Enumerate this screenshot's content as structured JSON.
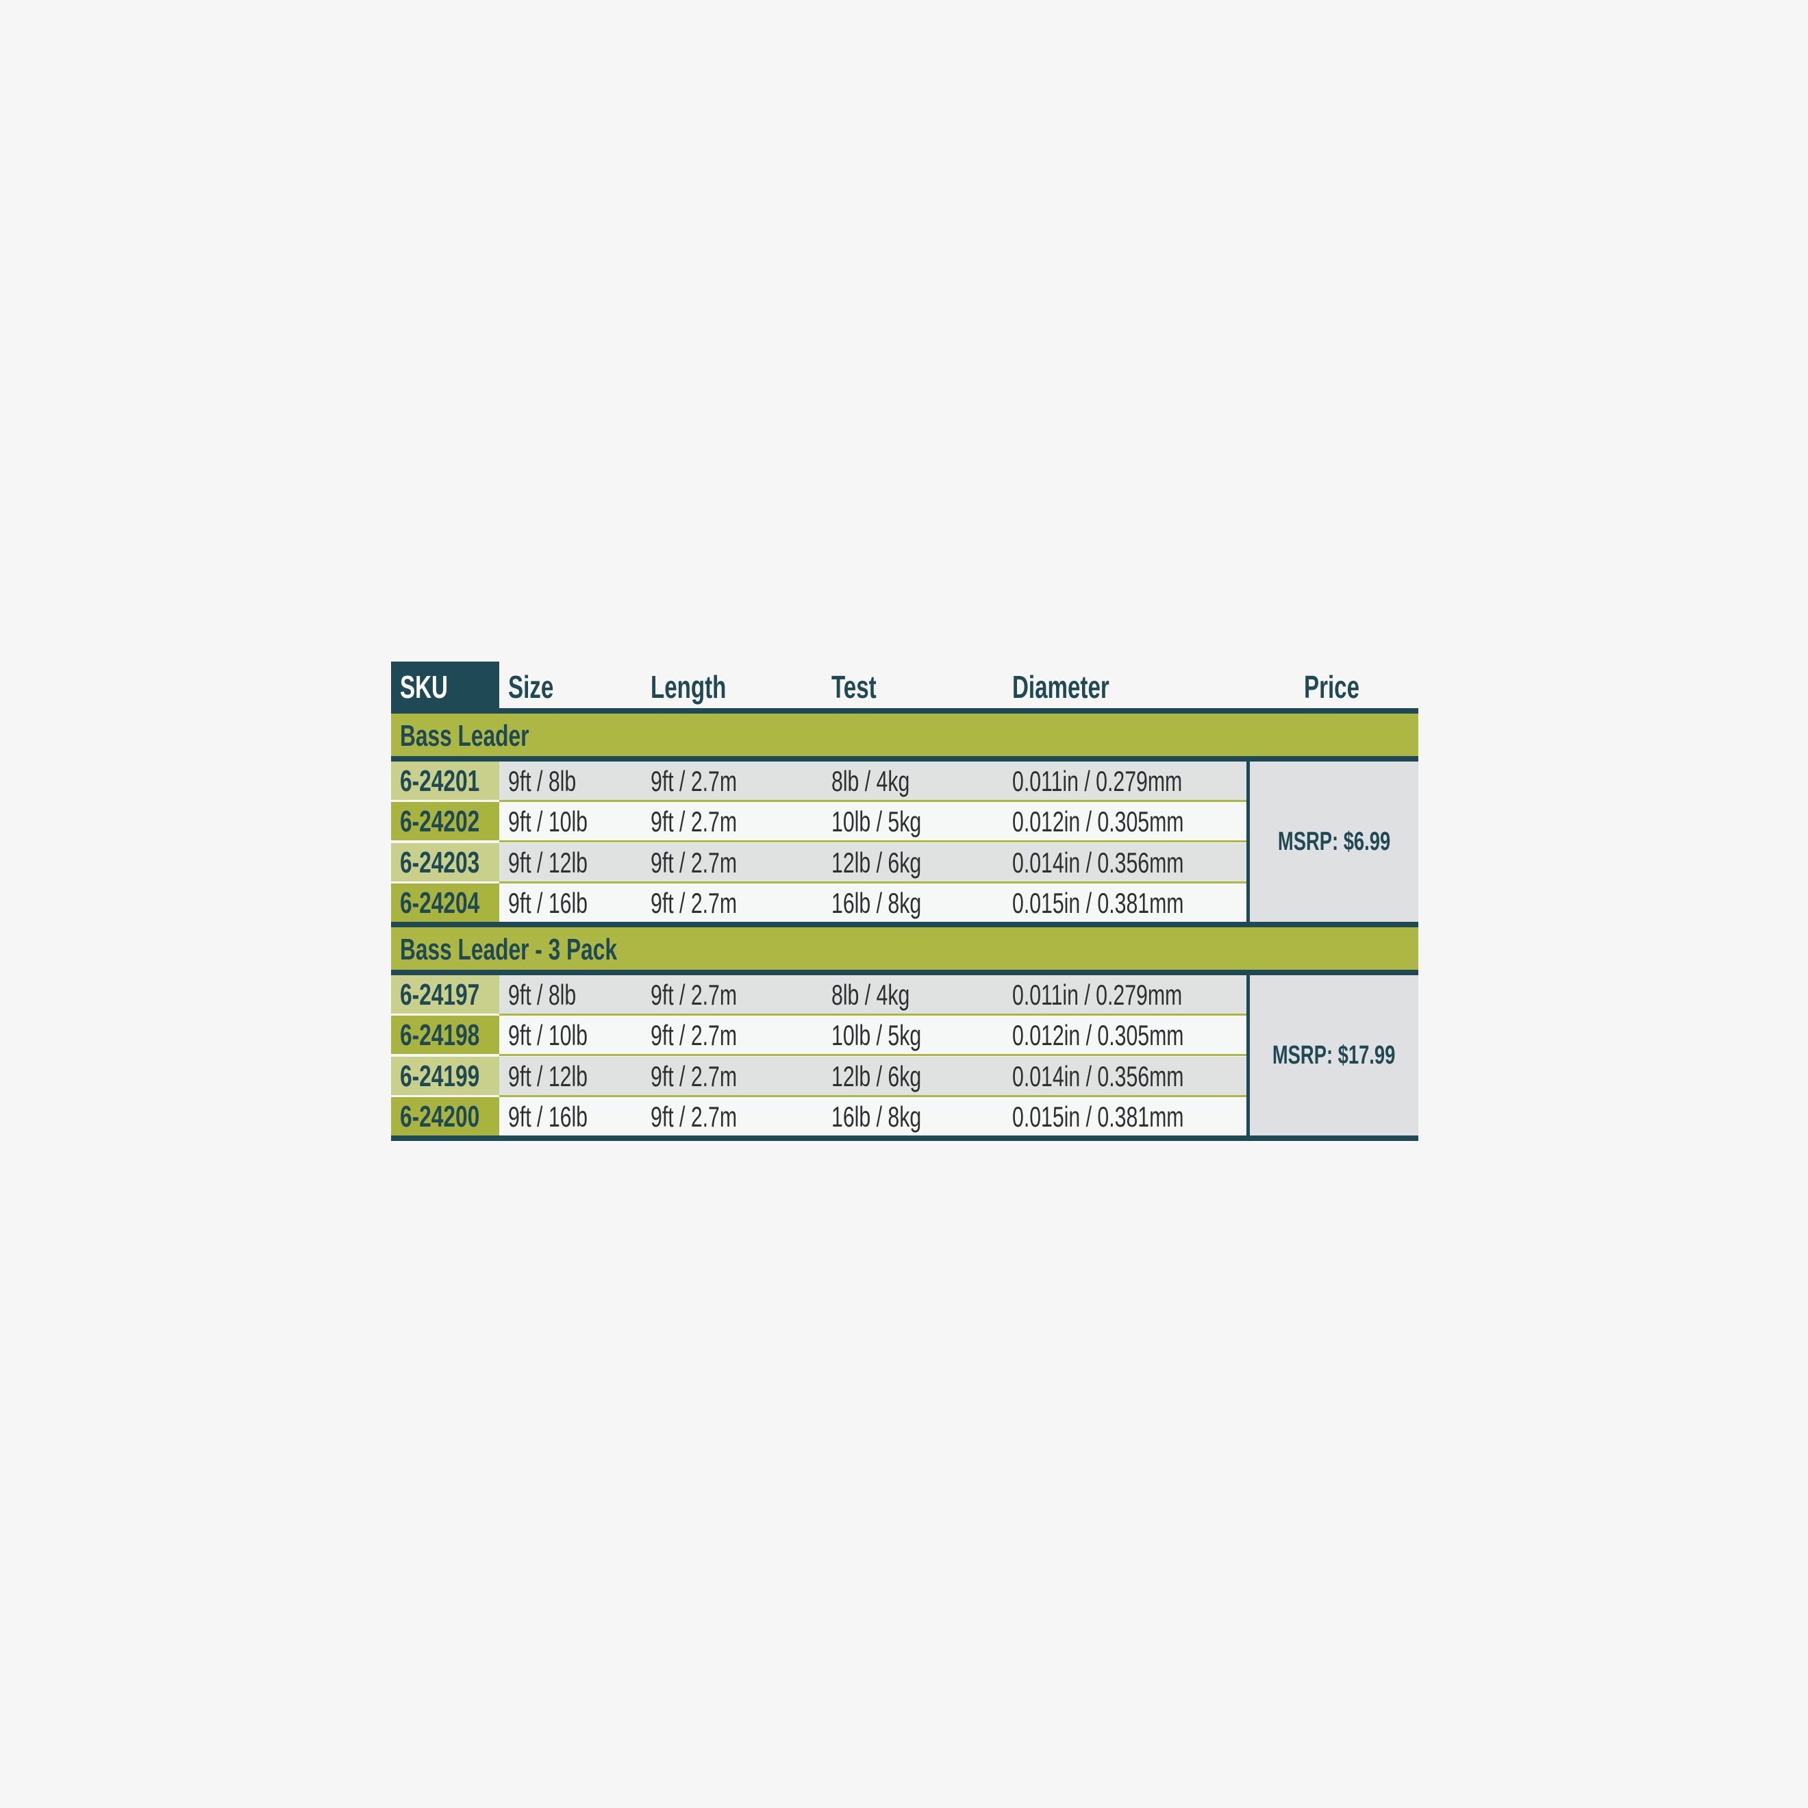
{
  "headers": {
    "sku": "SKU",
    "size": "Size",
    "length": "Length",
    "test": "Test",
    "diameter": "Diameter",
    "price": "Price"
  },
  "colors": {
    "dark_teal": "#1f4a55",
    "green": "#adb844",
    "sku_light": "#c9d08c",
    "sku_dark": "#a9b43f",
    "row_gray": "#e0e1e1",
    "row_white": "#f6f7f7"
  },
  "sections": [
    {
      "title": "Bass Leader",
      "price": "MSRP: $6.99",
      "rows": [
        {
          "sku": "6-24201",
          "size": "9ft / 8lb",
          "length": "9ft / 2.7m",
          "test": "8lb / 4kg",
          "diameter": "0.011in / 0.279mm"
        },
        {
          "sku": "6-24202",
          "size": "9ft / 10lb",
          "length": "9ft / 2.7m",
          "test": "10lb / 5kg",
          "diameter": "0.012in / 0.305mm"
        },
        {
          "sku": "6-24203",
          "size": "9ft / 12lb",
          "length": "9ft / 2.7m",
          "test": "12lb / 6kg",
          "diameter": "0.014in / 0.356mm"
        },
        {
          "sku": "6-24204",
          "size": "9ft / 16lb",
          "length": "9ft / 2.7m",
          "test": "16lb / 8kg",
          "diameter": "0.015in / 0.381mm"
        }
      ]
    },
    {
      "title": "Bass Leader - 3 Pack",
      "price": "MSRP: $17.99",
      "rows": [
        {
          "sku": "6-24197",
          "size": "9ft / 8lb",
          "length": "9ft / 2.7m",
          "test": "8lb / 4kg",
          "diameter": "0.011in / 0.279mm"
        },
        {
          "sku": "6-24198",
          "size": "9ft / 10lb",
          "length": "9ft / 2.7m",
          "test": "10lb / 5kg",
          "diameter": "0.012in / 0.305mm"
        },
        {
          "sku": "6-24199",
          "size": "9ft / 12lb",
          "length": "9ft / 2.7m",
          "test": "12lb / 6kg",
          "diameter": "0.014in / 0.356mm"
        },
        {
          "sku": "6-24200",
          "size": "9ft / 16lb",
          "length": "9ft / 2.7m",
          "test": "16lb / 8kg",
          "diameter": "0.015in / 0.381mm"
        }
      ]
    }
  ]
}
